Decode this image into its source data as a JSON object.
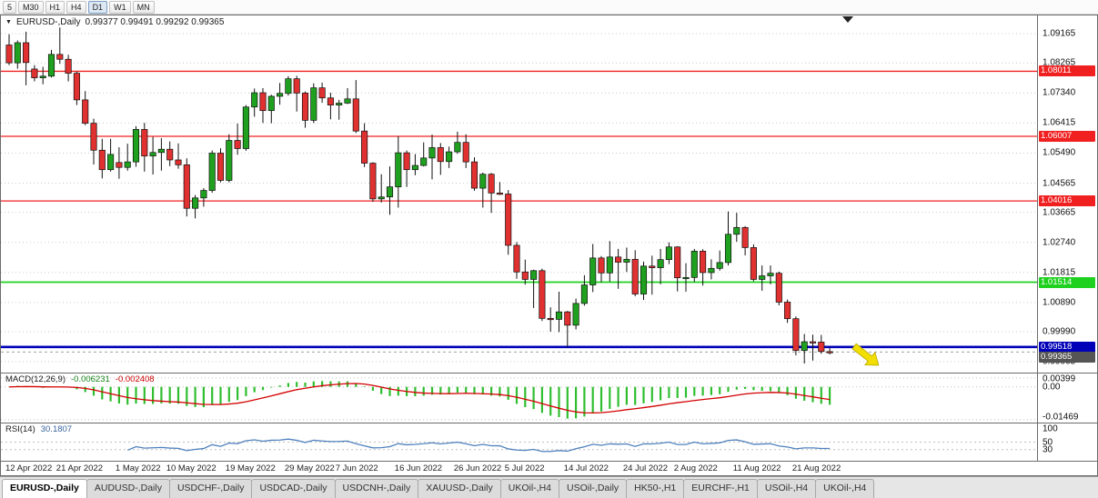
{
  "icons": {
    "dropdown": "▼"
  },
  "window": {
    "title": "EURUSD-,Daily",
    "ohlc": "0.99377 0.99491 0.99292 0.99365"
  },
  "toolbar": {
    "timeframes": [
      "5",
      "M30",
      "H1",
      "H4",
      "D1",
      "W1",
      "MN"
    ],
    "active_timeframe": "D1"
  },
  "price_axis": {
    "labels": [
      "1.09165",
      "1.08265",
      "1.07340",
      "1.06415",
      "1.05490",
      "1.04565",
      "1.03665",
      "1.02740",
      "1.01815",
      "1.00890",
      "0.99990",
      "0.99065"
    ]
  },
  "levels": [
    {
      "price": 1.08011,
      "label": "1.08011",
      "color": "#f02020",
      "width": 1.3,
      "type": "resistance"
    },
    {
      "price": 1.06007,
      "label": "1.06007",
      "color": "#f02020",
      "width": 1.3,
      "type": "resistance"
    },
    {
      "price": 1.04016,
      "label": "1.04016",
      "color": "#f02020",
      "width": 1.3,
      "type": "resistance"
    },
    {
      "price": 1.01514,
      "label": "1.01514",
      "color": "#1fd11f",
      "width": 1.7,
      "type": "support"
    },
    {
      "price": 0.99518,
      "label": "0.99518",
      "color": "#0000b8",
      "width": 2.6,
      "type": "support"
    }
  ],
  "bid": {
    "price": 0.99365,
    "label": "0.99365",
    "label_bg": "#555555"
  },
  "annotations": {
    "arrow": {
      "shape": "arrow-down-right",
      "color": "#f2de00"
    },
    "shift_marker": {
      "shape": "triangle-down",
      "color": "#222222"
    }
  },
  "colors": {
    "up": "#1fa11f",
    "down": "#e03030",
    "wick": "#101010",
    "grid": "#c9c9c9",
    "bid_line": "#a0a0a0"
  },
  "chart_data": {
    "type": "candlestick",
    "symbol": "EURUSD-",
    "period": "Daily",
    "y_range": [
      0.9873,
      1.0973
    ],
    "candles": [
      [
        "2022-04-12",
        1.0882,
        1.0915,
        1.082,
        1.0827
      ],
      [
        "2022-04-13",
        1.0827,
        1.0896,
        1.0809,
        1.0889
      ],
      [
        "2022-04-14",
        1.0889,
        1.0923,
        1.0758,
        1.0828
      ],
      [
        "2022-04-18",
        1.0808,
        1.082,
        1.077,
        1.0781
      ],
      [
        "2022-04-19",
        1.0781,
        1.0815,
        1.0761,
        1.0786
      ],
      [
        "2022-04-20",
        1.0786,
        1.0867,
        1.0782,
        1.0853
      ],
      [
        "2022-04-21",
        1.0853,
        1.0936,
        1.0824,
        1.0838
      ],
      [
        "2022-04-22",
        1.0838,
        1.0852,
        1.077,
        1.0795
      ],
      [
        "2022-04-25",
        1.0795,
        1.08,
        1.0697,
        1.0713
      ],
      [
        "2022-04-26",
        1.0713,
        1.074,
        1.0635,
        1.0641
      ],
      [
        "2022-04-27",
        1.0641,
        1.0655,
        1.0514,
        1.0558
      ],
      [
        "2022-04-28",
        1.0558,
        1.0593,
        1.0471,
        1.0498
      ],
      [
        "2022-04-29",
        1.0498,
        1.0593,
        1.0492,
        1.0545
      ],
      [
        "2022-05-02",
        1.052,
        1.0567,
        1.047,
        1.0505
      ],
      [
        "2022-05-03",
        1.0505,
        1.0578,
        1.0495,
        1.0522
      ],
      [
        "2022-05-04",
        1.0522,
        1.0632,
        1.0507,
        1.0622
      ],
      [
        "2022-05-05",
        1.0622,
        1.0642,
        1.0492,
        1.054
      ],
      [
        "2022-05-06",
        1.054,
        1.0599,
        1.0483,
        1.0551
      ],
      [
        "2022-05-09",
        1.0551,
        1.0595,
        1.0495,
        1.0561
      ],
      [
        "2022-05-10",
        1.0561,
        1.0585,
        1.0509,
        1.0528
      ],
      [
        "2022-05-11",
        1.0528,
        1.0579,
        1.0501,
        1.0513
      ],
      [
        "2022-05-12",
        1.0513,
        1.0533,
        1.0354,
        1.0379
      ],
      [
        "2022-05-13",
        1.0379,
        1.042,
        1.0348,
        1.0411
      ],
      [
        "2022-05-16",
        1.0411,
        1.0441,
        1.0384,
        1.0434
      ],
      [
        "2022-05-17",
        1.0434,
        1.0557,
        1.0427,
        1.0549
      ],
      [
        "2022-05-18",
        1.0549,
        1.0564,
        1.0459,
        1.0465
      ],
      [
        "2022-05-19",
        1.0465,
        1.0607,
        1.0459,
        1.0588
      ],
      [
        "2022-05-20",
        1.0588,
        1.064,
        1.0544,
        1.0563
      ],
      [
        "2022-05-23",
        1.0563,
        1.0697,
        1.0556,
        1.0691
      ],
      [
        "2022-05-24",
        1.0691,
        1.0748,
        1.0661,
        1.0735
      ],
      [
        "2022-05-25",
        1.0735,
        1.0749,
        1.0642,
        1.068
      ],
      [
        "2022-05-26",
        1.068,
        1.0729,
        1.0641,
        1.0724
      ],
      [
        "2022-05-27",
        1.0724,
        1.0765,
        1.0698,
        1.0733
      ],
      [
        "2022-05-30",
        1.0733,
        1.0786,
        1.0726,
        1.0778
      ],
      [
        "2022-05-31",
        1.0778,
        1.0787,
        1.0677,
        1.0734
      ],
      [
        "2022-06-01",
        1.0734,
        1.0739,
        1.0627,
        1.065
      ],
      [
        "2022-06-02",
        1.065,
        1.0764,
        1.0642,
        1.075
      ],
      [
        "2022-06-03",
        1.075,
        1.0766,
        1.0704,
        1.0719
      ],
      [
        "2022-06-06",
        1.0719,
        1.0735,
        1.0653,
        1.0697
      ],
      [
        "2022-06-07",
        1.0697,
        1.0713,
        1.0652,
        1.0703
      ],
      [
        "2022-06-08",
        1.0703,
        1.0749,
        1.07,
        1.0716
      ],
      [
        "2022-06-09",
        1.0716,
        1.0774,
        1.0611,
        1.0617
      ],
      [
        "2022-06-10",
        1.0617,
        1.0641,
        1.0506,
        1.0518
      ],
      [
        "2022-06-13",
        1.0518,
        1.0521,
        1.0399,
        1.0408
      ],
      [
        "2022-06-14",
        1.0408,
        1.0484,
        1.0397,
        1.0414
      ],
      [
        "2022-06-15",
        1.0414,
        1.0508,
        1.0359,
        1.0445
      ],
      [
        "2022-06-16",
        1.0445,
        1.0601,
        1.0381,
        1.055
      ],
      [
        "2022-06-17",
        1.055,
        1.0557,
        1.0445,
        1.0498
      ],
      [
        "2022-06-20",
        1.0498,
        1.0546,
        1.0481,
        1.0511
      ],
      [
        "2022-06-21",
        1.0511,
        1.0582,
        1.0508,
        1.0534
      ],
      [
        "2022-06-22",
        1.0534,
        1.0606,
        1.0468,
        1.0566
      ],
      [
        "2022-06-23",
        1.0566,
        1.058,
        1.0482,
        1.0523
      ],
      [
        "2022-06-24",
        1.0523,
        1.0569,
        1.0503,
        1.0553
      ],
      [
        "2022-06-27",
        1.0553,
        1.0615,
        1.0547,
        1.0582
      ],
      [
        "2022-06-28",
        1.0582,
        1.0607,
        1.0503,
        1.0522
      ],
      [
        "2022-06-29",
        1.0522,
        1.0536,
        1.0433,
        1.0441
      ],
      [
        "2022-06-30",
        1.0441,
        1.0489,
        1.0381,
        1.0484
      ],
      [
        "2022-07-01",
        1.0484,
        1.0488,
        1.0365,
        1.0426
      ],
      [
        "2022-07-04",
        1.0426,
        1.046,
        1.042,
        1.0423
      ],
      [
        "2022-07-05",
        1.0423,
        1.0435,
        1.0236,
        1.0265
      ],
      [
        "2022-07-06",
        1.0265,
        1.0275,
        1.0162,
        1.0183
      ],
      [
        "2022-07-07",
        1.0183,
        1.0221,
        1.0144,
        1.016
      ],
      [
        "2022-07-08",
        1.016,
        1.019,
        1.0072,
        1.0187
      ],
      [
        "2022-07-11",
        1.0187,
        1.0193,
        1.0032,
        1.004
      ],
      [
        "2022-07-12",
        1.004,
        1.0074,
        0.9999,
        1.0037
      ],
      [
        "2022-07-13",
        1.0037,
        1.0122,
        0.9998,
        1.006
      ],
      [
        "2022-07-14",
        1.006,
        1.0063,
        0.9952,
        1.0019
      ],
      [
        "2022-07-15",
        1.0019,
        1.0101,
        1.0006,
        1.0086
      ],
      [
        "2022-07-18",
        1.0086,
        1.0173,
        1.0079,
        1.0143
      ],
      [
        "2022-07-19",
        1.0143,
        1.0269,
        1.0121,
        1.0226
      ],
      [
        "2022-07-20",
        1.0226,
        1.0232,
        1.0151,
        1.018
      ],
      [
        "2022-07-21",
        1.018,
        1.0278,
        1.0153,
        1.0229
      ],
      [
        "2022-07-22",
        1.0229,
        1.0254,
        1.0131,
        1.0213
      ],
      [
        "2022-07-25",
        1.0213,
        1.0258,
        1.0183,
        1.0222
      ],
      [
        "2022-07-26",
        1.0222,
        1.025,
        1.0108,
        1.0115
      ],
      [
        "2022-07-27",
        1.0115,
        1.0215,
        1.0097,
        1.0201
      ],
      [
        "2022-07-28",
        1.0201,
        1.0233,
        1.0113,
        1.0196
      ],
      [
        "2022-07-29",
        1.0196,
        1.0254,
        1.0145,
        1.0221
      ],
      [
        "2022-08-01",
        1.0221,
        1.0274,
        1.0207,
        1.026
      ],
      [
        "2022-08-02",
        1.026,
        1.0262,
        1.0123,
        1.0165
      ],
      [
        "2022-08-03",
        1.0165,
        1.021,
        1.0122,
        1.0166
      ],
      [
        "2022-08-04",
        1.0166,
        1.0254,
        1.0152,
        1.0247
      ],
      [
        "2022-08-05",
        1.0247,
        1.0253,
        1.0141,
        1.0181
      ],
      [
        "2022-08-08",
        1.0181,
        1.0222,
        1.016,
        1.0194
      ],
      [
        "2022-08-09",
        1.0194,
        1.0249,
        1.0187,
        1.0212
      ],
      [
        "2022-08-10",
        1.0212,
        1.0369,
        1.0203,
        1.0299
      ],
      [
        "2022-08-11",
        1.0299,
        1.0365,
        1.0276,
        1.032
      ],
      [
        "2022-08-12",
        1.032,
        1.0324,
        1.0234,
        1.0258
      ],
      [
        "2022-08-15",
        1.0258,
        1.0268,
        1.0154,
        1.016
      ],
      [
        "2022-08-16",
        1.016,
        1.0203,
        1.0125,
        1.0171
      ],
      [
        "2022-08-17",
        1.0171,
        1.0203,
        1.0145,
        1.0179
      ],
      [
        "2022-08-18",
        1.0179,
        1.0184,
        1.008,
        1.009
      ],
      [
        "2022-08-19",
        1.009,
        1.0098,
        1.0026,
        1.0039
      ],
      [
        "2022-08-22",
        1.0039,
        1.0046,
        0.9926,
        0.9941
      ],
      [
        "2022-08-23",
        0.9941,
        0.9992,
        0.9901,
        0.9968
      ],
      [
        "2022-08-24",
        0.9968,
        0.999,
        0.991,
        0.9967
      ],
      [
        "2022-08-25",
        0.9967,
        0.9989,
        0.9931,
        0.9938
      ],
      [
        "2022-08-26",
        0.99377,
        0.99491,
        0.99292,
        0.99365
      ]
    ],
    "x_ticks": [
      {
        "label": "12 Apr 2022",
        "i": 0
      },
      {
        "label": "21 Apr 2022",
        "i": 6
      },
      {
        "label": "1 May 2022",
        "i": 13
      },
      {
        "label": "10 May 2022",
        "i": 19
      },
      {
        "label": "19 May 2022",
        "i": 26
      },
      {
        "label": "29 May 2022",
        "i": 33
      },
      {
        "label": "7 Jun 2022",
        "i": 39
      },
      {
        "label": "16 Jun 2022",
        "i": 46
      },
      {
        "label": "26 Jun 2022",
        "i": 53
      },
      {
        "label": "5 Jul 2022",
        "i": 59
      },
      {
        "label": "14 Jul 2022",
        "i": 66
      },
      {
        "label": "24 Jul 2022",
        "i": 73
      },
      {
        "label": "2 Aug 2022",
        "i": 79
      },
      {
        "label": "11 Aug 2022",
        "i": 86
      },
      {
        "label": "21 Aug 2022",
        "i": 93
      }
    ]
  },
  "indicators": {
    "macd": {
      "label": "MACD(12,26,9)",
      "main_value": "-0.006231",
      "signal_value": "-0.002408",
      "axis_labels": [
        "0.00399",
        "0.00",
        "-0.01469"
      ],
      "y_range": [
        -0.016,
        0.006
      ],
      "histogram_color": "#2fbe2f",
      "signal_color": "#d40000"
    },
    "rsi": {
      "label": "RSI(14)",
      "value": "30.1807",
      "axis_labels": [
        "100",
        "50",
        "30"
      ],
      "y_range": [
        0,
        100
      ],
      "line_color": "#4f81bd"
    }
  },
  "tabs": {
    "active": "EURUSD-,Daily",
    "items": [
      "EURUSD-,Daily",
      "AUDUSD-,Daily",
      "USDCHF-,Daily",
      "USDCAD-,Daily",
      "USDCNH-,Daily",
      "XAUUSD-,Daily",
      "UKOil-,H4",
      "USOil-,Daily",
      "HK50-,H1",
      "EURCHF-,H1",
      "USOil-,H4",
      "UKOil-,H4"
    ]
  }
}
